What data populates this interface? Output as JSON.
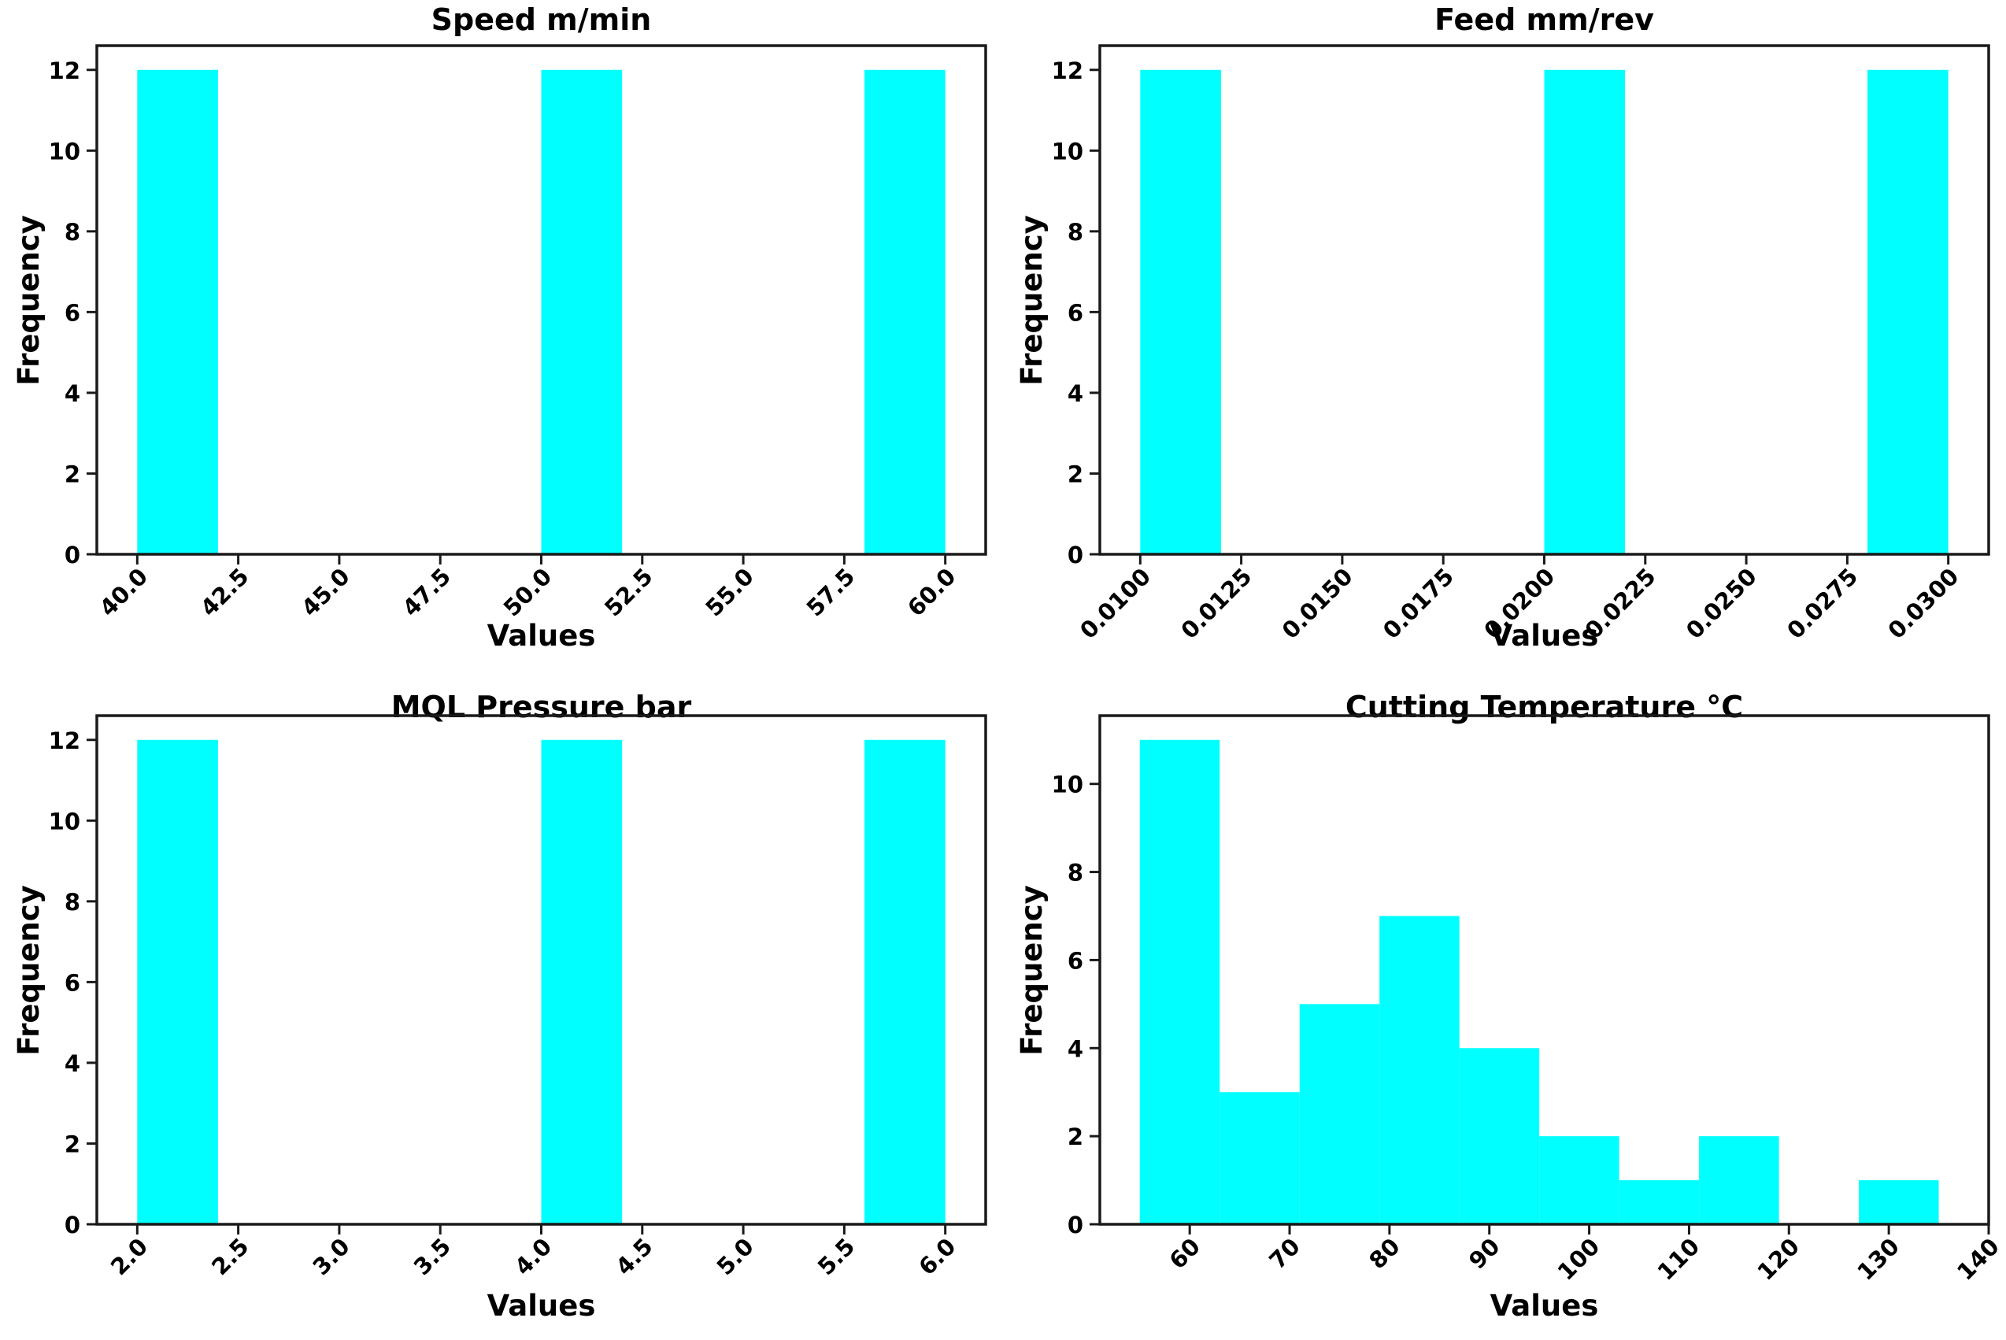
{
  "figure": {
    "background_color": "#ffffff",
    "bar_color": "#00ffff",
    "spine_color": "#1a1a1a",
    "tick_color": "#1a1a1a",
    "text_color": "#000000"
  },
  "chart_data": [
    {
      "type": "histogram",
      "title": "Speed m/min",
      "xlabel": "Values",
      "ylabel": "Frequency",
      "bins": {
        "start": 40,
        "width": 2
      },
      "counts": [
        12,
        0,
        0,
        0,
        0,
        12,
        0,
        0,
        0,
        12
      ],
      "xlim": [
        39,
        61
      ],
      "ylim": [
        0,
        12.6
      ],
      "xtick_values": [
        40,
        42.5,
        45,
        47.5,
        50,
        52.5,
        55,
        57.5,
        60
      ],
      "xtick_labels": [
        "40.0",
        "42.5",
        "45.0",
        "47.5",
        "50.0",
        "52.5",
        "55.0",
        "57.5",
        "60.0"
      ],
      "yticks": [
        0,
        2,
        4,
        6,
        8,
        10,
        12
      ],
      "grid": false,
      "legend": false
    },
    {
      "type": "histogram",
      "title": "Feed mm/rev",
      "xlabel": "Values",
      "ylabel": "Frequency",
      "bins": {
        "start": 0.01,
        "width": 0.002
      },
      "counts": [
        12,
        0,
        0,
        0,
        0,
        12,
        0,
        0,
        0,
        12
      ],
      "xlim": [
        0.009,
        0.031
      ],
      "ylim": [
        0,
        12.6
      ],
      "xtick_values": [
        0.01,
        0.0125,
        0.015,
        0.0175,
        0.02,
        0.0225,
        0.025,
        0.0275,
        0.03
      ],
      "xtick_labels": [
        "0.0100",
        "0.0125",
        "0.0150",
        "0.0175",
        "0.0200",
        "0.0225",
        "0.0250",
        "0.0275",
        "0.0300"
      ],
      "yticks": [
        0,
        2,
        4,
        6,
        8,
        10,
        12
      ],
      "grid": false,
      "legend": false
    },
    {
      "type": "histogram",
      "title": "MQL Pressure bar",
      "xlabel": "Values",
      "ylabel": "Frequency",
      "bins": {
        "start": 2,
        "width": 0.4
      },
      "counts": [
        12,
        0,
        0,
        0,
        0,
        12,
        0,
        0,
        0,
        12
      ],
      "xlim": [
        1.8,
        6.2
      ],
      "ylim": [
        0,
        12.6
      ],
      "xtick_values": [
        2,
        2.5,
        3,
        3.5,
        4,
        4.5,
        5,
        5.5,
        6
      ],
      "xtick_labels": [
        "2.0",
        "2.5",
        "3.0",
        "3.5",
        "4.0",
        "4.5",
        "5.0",
        "5.5",
        "6.0"
      ],
      "yticks": [
        0,
        2,
        4,
        6,
        8,
        10,
        12
      ],
      "grid": false,
      "legend": false
    },
    {
      "type": "histogram",
      "title": "Cutting Temperature °C",
      "xlabel": "Values",
      "ylabel": "Frequency",
      "bins": {
        "start": 55,
        "width": 8
      },
      "counts": [
        11,
        3,
        5,
        7,
        4,
        2,
        1,
        2,
        0,
        1
      ],
      "xlim": [
        51,
        140
      ],
      "ylim": [
        0,
        11.55
      ],
      "xtick_values": [
        60,
        70,
        80,
        90,
        100,
        110,
        120,
        130,
        140
      ],
      "xtick_labels": [
        "60",
        "70",
        "80",
        "90",
        "100",
        "110",
        "120",
        "130",
        "140"
      ],
      "yticks": [
        0,
        2,
        4,
        6,
        8,
        10
      ],
      "grid": false,
      "legend": false
    }
  ]
}
